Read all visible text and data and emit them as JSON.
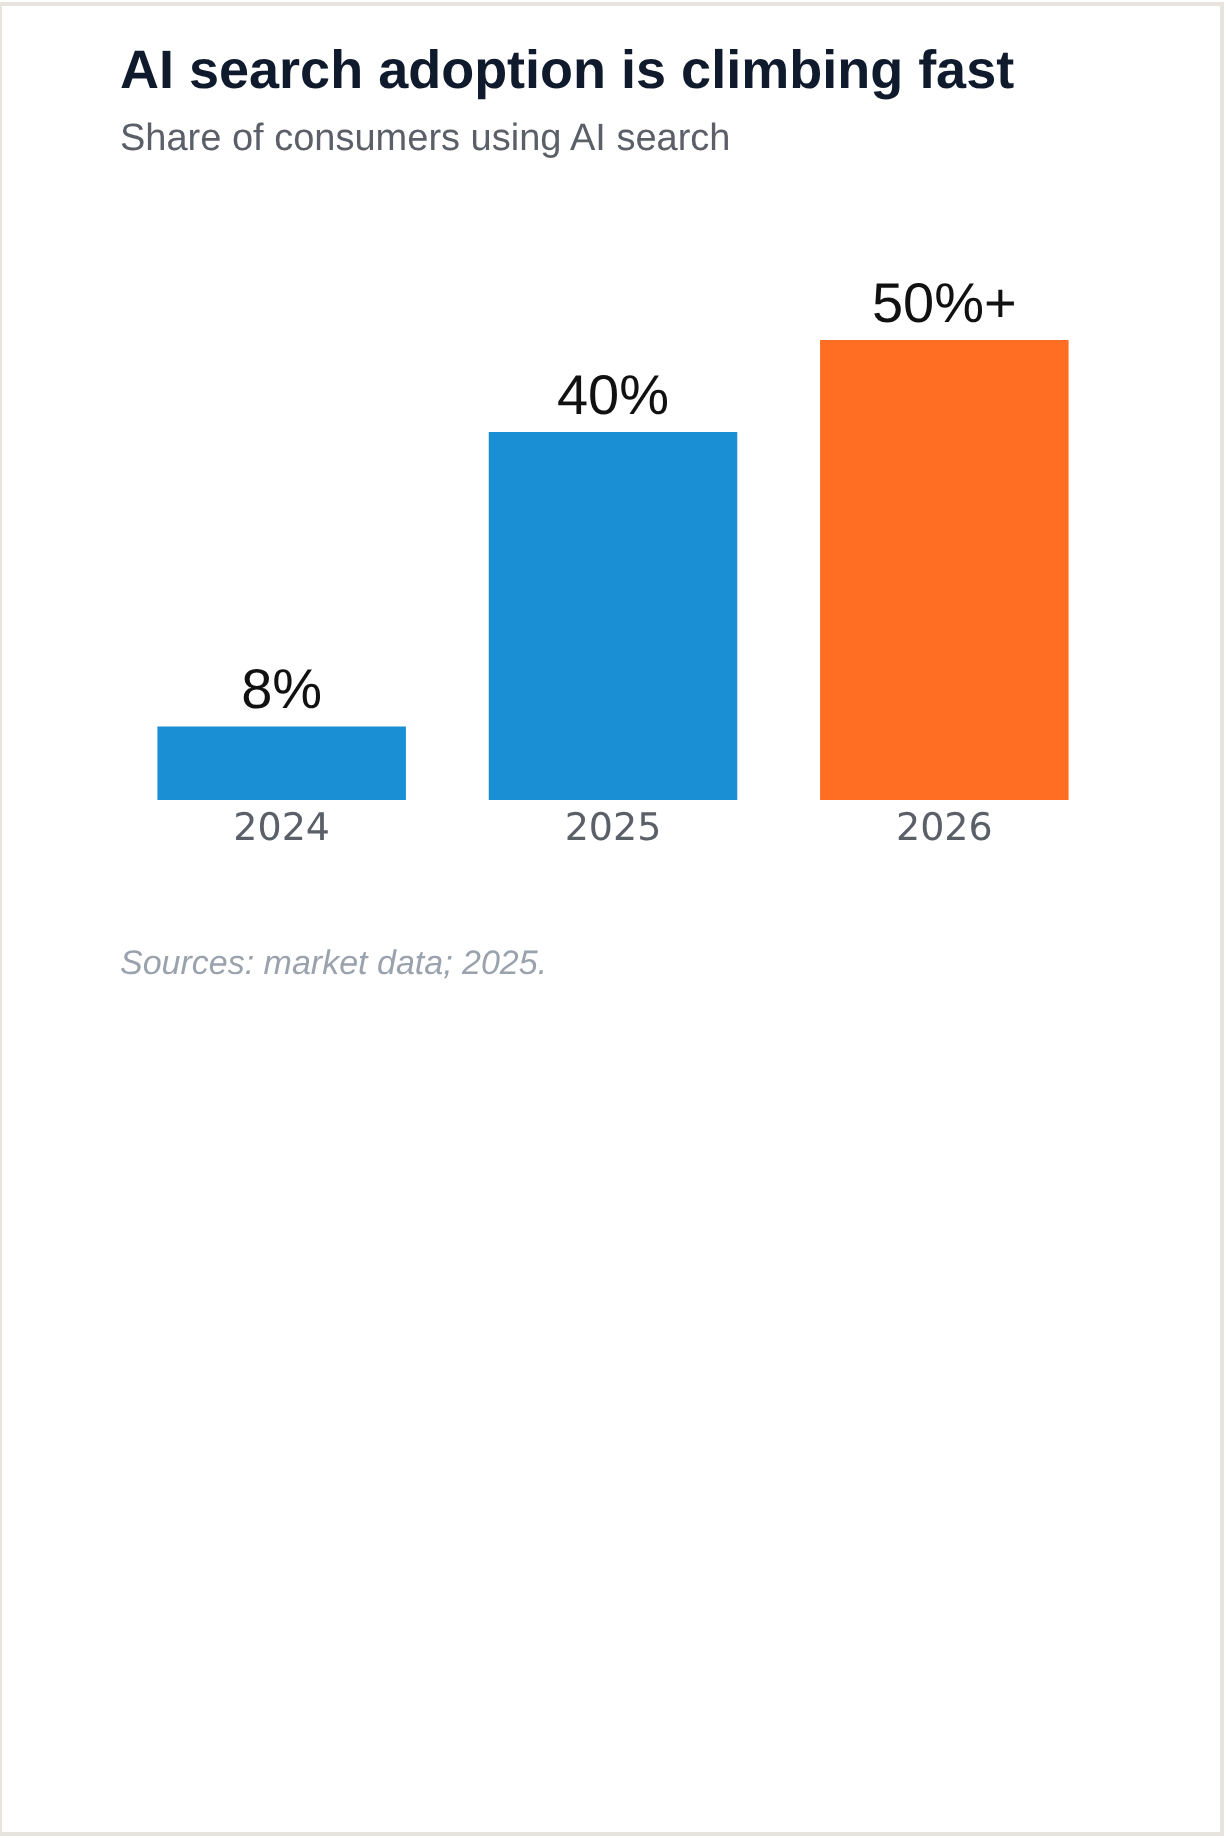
{
  "chart_data": {
    "type": "bar",
    "title": "AI search adoption is climbing fast",
    "subtitle": "Share of consumers using AI search",
    "categories": [
      "2024",
      "2025",
      "2026"
    ],
    "values": [
      8,
      40,
      50
    ],
    "value_labels": [
      "8%",
      "40%",
      "50%+"
    ],
    "colors": [
      "#1b8fd4",
      "#1b8fd4",
      "#ff6e22"
    ],
    "tick_labels": "x",
    "annotations": [
      "Sources: market data; 2025."
    ]
  }
}
